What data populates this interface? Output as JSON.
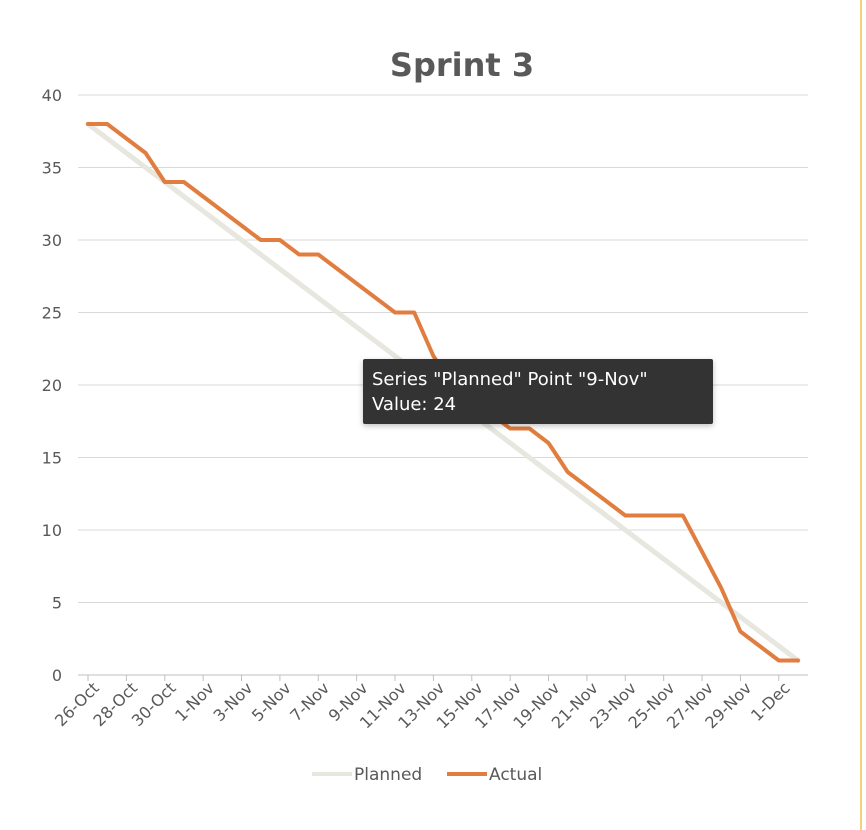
{
  "chart_data": {
    "type": "line",
    "title": "Sprint 3",
    "xlabel": "",
    "ylabel": "",
    "ylim": [
      0,
      40
    ],
    "yticks": [
      0,
      5,
      10,
      15,
      20,
      25,
      30,
      35,
      40
    ],
    "grid": true,
    "legend_position": "bottom",
    "x": [
      "26-Oct",
      "27-Oct",
      "28-Oct",
      "29-Oct",
      "30-Oct",
      "31-Oct",
      "1-Nov",
      "2-Nov",
      "3-Nov",
      "4-Nov",
      "5-Nov",
      "6-Nov",
      "7-Nov",
      "8-Nov",
      "9-Nov",
      "10-Nov",
      "11-Nov",
      "12-Nov",
      "13-Nov",
      "14-Nov",
      "15-Nov",
      "16-Nov",
      "17-Nov",
      "18-Nov",
      "19-Nov",
      "20-Nov",
      "21-Nov",
      "22-Nov",
      "23-Nov",
      "24-Nov",
      "25-Nov",
      "26-Nov",
      "27-Nov",
      "28-Nov",
      "29-Nov",
      "30-Nov",
      "1-Dec",
      "2-Dec"
    ],
    "x_tick_labels": [
      "26-Oct",
      "28-Oct",
      "30-Oct",
      "1-Nov",
      "3-Nov",
      "5-Nov",
      "7-Nov",
      "9-Nov",
      "11-Nov",
      "13-Nov",
      "15-Nov",
      "17-Nov",
      "19-Nov",
      "21-Nov",
      "23-Nov",
      "25-Nov",
      "27-Nov",
      "29-Nov",
      "1-Dec"
    ],
    "series": [
      {
        "name": "Planned",
        "color": "#e7e6df",
        "values": [
          38,
          37,
          36,
          35,
          34,
          33,
          32,
          31,
          30,
          29,
          28,
          27,
          26,
          25,
          24,
          23,
          22,
          21,
          20,
          19,
          18,
          17,
          16,
          15,
          14,
          13,
          12,
          11,
          10,
          9,
          8,
          7,
          6,
          5,
          4,
          3,
          2,
          1
        ]
      },
      {
        "name": "Actual",
        "color": "#e07d3f",
        "values": [
          38,
          38,
          37,
          36,
          34,
          34,
          33,
          32,
          31,
          30,
          30,
          29,
          29,
          28,
          27,
          26,
          25,
          25,
          22,
          20,
          19,
          18,
          17,
          17,
          16,
          14,
          13,
          12,
          11,
          11,
          11,
          11,
          8.5,
          6,
          3,
          2,
          1,
          1
        ]
      }
    ]
  },
  "tooltip": {
    "line1": "Series \"Planned\" Point \"9-Nov\"",
    "line2": "Value: 24"
  }
}
